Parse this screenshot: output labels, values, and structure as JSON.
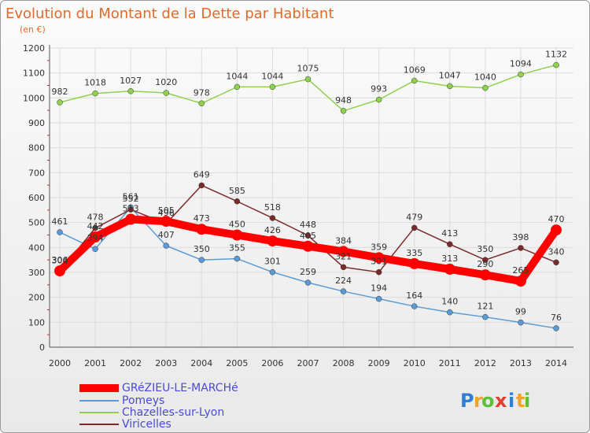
{
  "chart_data": {
    "type": "line",
    "title": "Evolution du Montant de la Dette par Habitant",
    "subtitle": "(en €)",
    "x": [
      "2000",
      "2001",
      "2002",
      "2003",
      "2004",
      "2005",
      "2006",
      "2007",
      "2008",
      "2009",
      "2010",
      "2011",
      "2012",
      "2013",
      "2014"
    ],
    "ylim": [
      0,
      1200
    ],
    "yticks": [
      0,
      100,
      200,
      300,
      400,
      500,
      600,
      700,
      800,
      900,
      1000,
      1100,
      1200
    ],
    "grid": true,
    "legend_position": "bottom-left",
    "series": [
      {
        "name": "GRéZIEU-LE-MARCHé",
        "color": "#ff0000",
        "width": 10,
        "values": [
          306,
          442,
          513,
          505,
          473,
          450,
          426,
          405,
          384,
          359,
          335,
          313,
          290,
          265,
          470
        ],
        "labeled": true
      },
      {
        "name": "Pomeys",
        "color": "#5b9bd5",
        "width": 1.5,
        "values": [
          461,
          394,
          561,
          407,
          350,
          355,
          301,
          259,
          224,
          194,
          164,
          140,
          121,
          99,
          76
        ],
        "labeled": true
      },
      {
        "name": "Chazelles-sur-Lyon",
        "color": "#8fd14f",
        "width": 1.5,
        "values": [
          982,
          1018,
          1027,
          1020,
          978,
          1044,
          1044,
          1075,
          948,
          993,
          1069,
          1047,
          1040,
          1094,
          1132
        ],
        "labeled": true
      },
      {
        "name": "Viricelles",
        "color": "#7b2a2a",
        "width": 1.5,
        "values": [
          304,
          478,
          552,
          496,
          649,
          585,
          518,
          448,
          321,
          301,
          479,
          413,
          350,
          398,
          340
        ],
        "labeled": true
      }
    ]
  },
  "logo": {
    "letters": [
      "P",
      "r",
      "o",
      "x",
      "i",
      "t",
      "i"
    ],
    "colors": [
      "#2e7fd1",
      "#f2a12b",
      "#5fbf3a",
      "#e53c2e",
      "#2e7fd1",
      "#f2a12b",
      "#5fbf3a"
    ]
  }
}
